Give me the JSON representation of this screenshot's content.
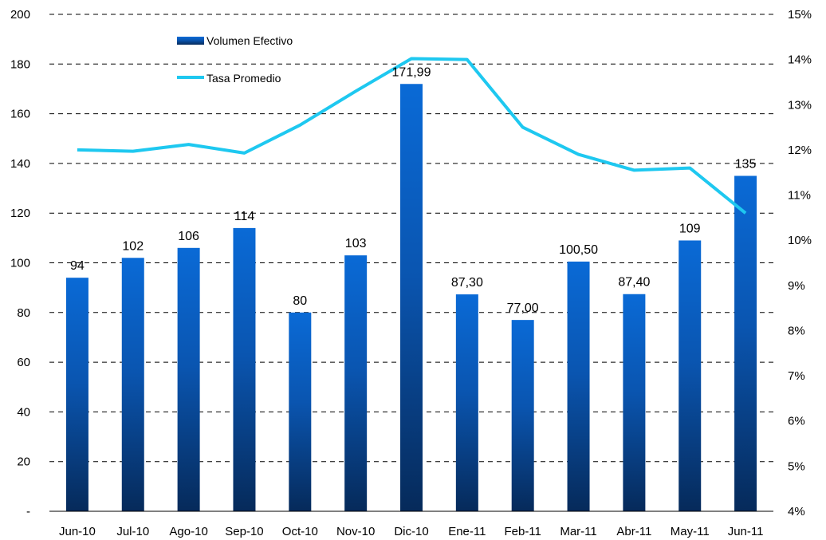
{
  "chart_data": {
    "type": "bar",
    "categories": [
      "Jun-10",
      "Jul-10",
      "Ago-10",
      "Sep-10",
      "Oct-10",
      "Nov-10",
      "Dic-10",
      "Ene-11",
      "Feb-11",
      "Mar-11",
      "Abr-11",
      "May-11",
      "Jun-11"
    ],
    "series": [
      {
        "name": "Volumen Efectivo",
        "type": "bar",
        "axis": "left",
        "color": "#0a5bc0",
        "values": [
          94,
          102,
          106,
          114,
          80,
          103,
          171.99,
          87.3,
          77.0,
          100.5,
          87.4,
          109,
          135
        ],
        "labels": [
          "94",
          "102",
          "106",
          "114",
          "80",
          "103",
          "171,99",
          "87,30",
          "77,00",
          "100,50",
          "87,40",
          "109",
          "135"
        ]
      },
      {
        "name": "Tasa Promedio",
        "type": "line",
        "axis": "right",
        "color": "#1ec8f0",
        "values": [
          12.0,
          11.97,
          12.12,
          11.93,
          12.55,
          13.3,
          14.02,
          14.0,
          12.5,
          11.9,
          11.55,
          11.6,
          10.6
        ]
      }
    ],
    "y_left": {
      "lim": [
        0,
        200
      ],
      "ticks": [
        0,
        20,
        40,
        60,
        80,
        100,
        120,
        140,
        160,
        180,
        200
      ],
      "tick_labels": [
        "-",
        "20",
        "40",
        "60",
        "80",
        "100",
        "120",
        "140",
        "160",
        "180",
        "200"
      ]
    },
    "y_right": {
      "lim": [
        4,
        15
      ],
      "ticks": [
        4,
        5,
        6,
        7,
        8,
        9,
        10,
        11,
        12,
        13,
        14,
        15
      ],
      "tick_labels": [
        "4%",
        "5%",
        "6%",
        "7%",
        "8%",
        "9%",
        "10%",
        "11%",
        "12%",
        "13%",
        "14%",
        "15%"
      ]
    },
    "grid": "dashed-horizontal",
    "legend_position": "top-left"
  }
}
